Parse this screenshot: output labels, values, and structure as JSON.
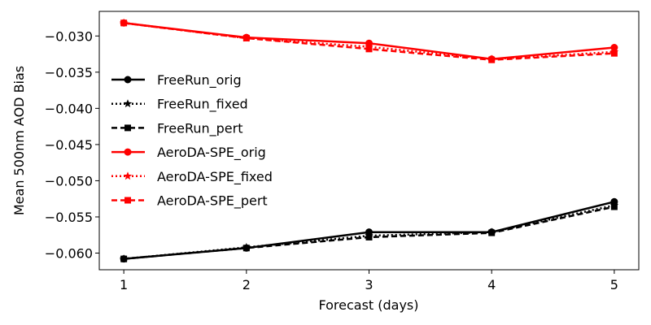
{
  "chart_data": {
    "type": "line",
    "title": "",
    "xlabel": "Forecast (days)",
    "ylabel": "Mean 500nm AOD Bias",
    "x": [
      1,
      2,
      3,
      4,
      5
    ],
    "xticks": [
      "1",
      "2",
      "3",
      "4",
      "5"
    ],
    "yticks": [
      "−0.030",
      "−0.035",
      "−0.040",
      "−0.045",
      "−0.050",
      "−0.055",
      "−0.060"
    ],
    "ytick_values": [
      -0.03,
      -0.035,
      -0.04,
      -0.045,
      -0.05,
      -0.055,
      -0.06
    ],
    "xlim": [
      0.8,
      5.2
    ],
    "ylim": [
      -0.0623,
      -0.0266
    ],
    "grid": false,
    "legend_position": "center-left",
    "series": [
      {
        "name": "FreeRun_orig",
        "color": "#000000",
        "linestyle": "solid",
        "marker": "circle",
        "values": [
          -0.0608,
          -0.0593,
          -0.0571,
          -0.0571,
          -0.0529
        ]
      },
      {
        "name": "FreeRun_fixed",
        "color": "#000000",
        "linestyle": "dotted",
        "marker": "star",
        "values": [
          -0.0608,
          -0.0592,
          -0.0576,
          -0.0571,
          -0.0534
        ]
      },
      {
        "name": "FreeRun_pert",
        "color": "#000000",
        "linestyle": "dashed",
        "marker": "square",
        "values": [
          -0.0608,
          -0.0593,
          -0.0578,
          -0.0572,
          -0.0536
        ]
      },
      {
        "name": "AeroDA-SPE_orig",
        "color": "#ff0000",
        "linestyle": "solid",
        "marker": "circle",
        "values": [
          -0.0282,
          -0.0302,
          -0.031,
          -0.0332,
          -0.0316
        ]
      },
      {
        "name": "AeroDA-SPE_fixed",
        "color": "#ff0000",
        "linestyle": "dotted",
        "marker": "star",
        "values": [
          -0.0282,
          -0.0303,
          -0.0315,
          -0.0332,
          -0.0322
        ]
      },
      {
        "name": "AeroDA-SPE_pert",
        "color": "#ff0000",
        "linestyle": "dashed",
        "marker": "square",
        "values": [
          -0.0282,
          -0.0303,
          -0.0318,
          -0.0333,
          -0.0324
        ]
      }
    ]
  }
}
